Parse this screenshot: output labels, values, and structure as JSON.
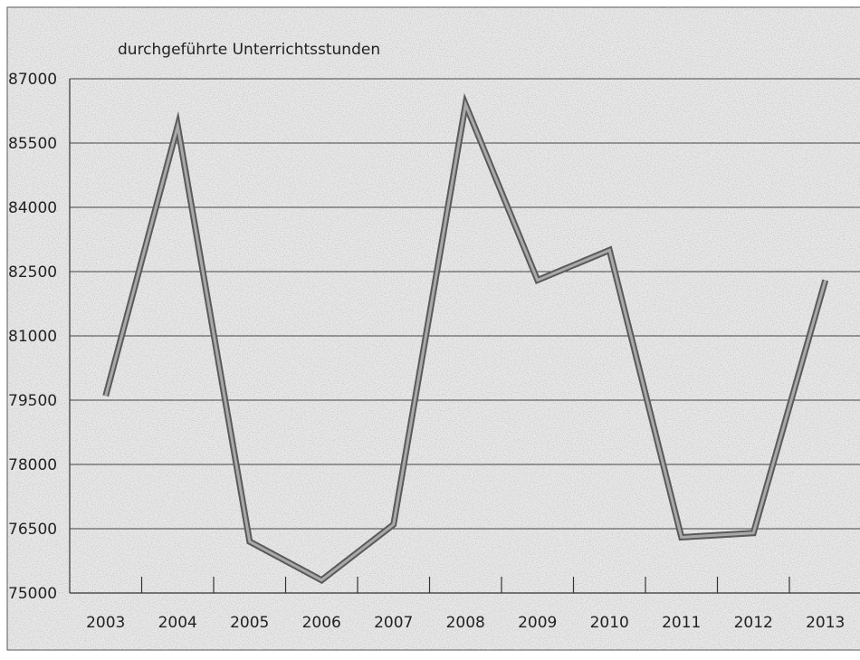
{
  "chart_data": {
    "type": "line",
    "title": "durchgeführte Unterrichtsstunden",
    "categories": [
      "2003",
      "2004",
      "2005",
      "2006",
      "2007",
      "2008",
      "2009",
      "2010",
      "2011",
      "2012",
      "2013"
    ],
    "series": [
      {
        "name": "durchgeführte Unterrichtsstunden",
        "color": "#5a5a5a",
        "values": [
          79600,
          85900,
          76200,
          75300,
          76600,
          86400,
          82300,
          83000,
          76300,
          76400,
          82300
        ]
      }
    ],
    "ylim": [
      75000,
      87000
    ],
    "yticks": [
      75000,
      76500,
      78000,
      79500,
      81000,
      82500,
      84000,
      85500,
      87000
    ],
    "grid": true
  }
}
